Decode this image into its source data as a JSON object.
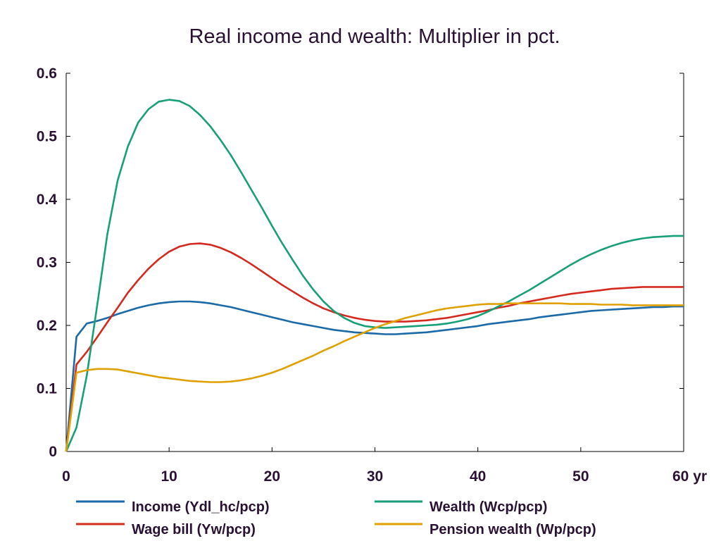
{
  "chart_data": {
    "type": "line",
    "title": "Real income and wealth: Multiplier in pct.",
    "xlabel": "",
    "ylabel": "",
    "x_unit_label": "yr",
    "xlim": [
      0,
      60
    ],
    "ylim": [
      0,
      0.6
    ],
    "x_ticks": [
      0,
      10,
      20,
      30,
      40,
      50,
      60
    ],
    "x_tick_labels": [
      "0",
      "10",
      "20",
      "30",
      "40",
      "50",
      "60 yr"
    ],
    "y_ticks": [
      0,
      0.1,
      0.2,
      0.3,
      0.4,
      0.5,
      0.6
    ],
    "y_tick_labels": [
      "0",
      "0.1",
      "0.2",
      "0.3",
      "0.4",
      "0.5",
      "0.6"
    ],
    "grid": false,
    "legend_position": "bottom",
    "x": [
      0,
      1,
      2,
      3,
      4,
      5,
      6,
      7,
      8,
      9,
      10,
      11,
      12,
      13,
      14,
      15,
      16,
      17,
      18,
      19,
      20,
      21,
      22,
      23,
      24,
      25,
      26,
      27,
      28,
      29,
      30,
      31,
      32,
      33,
      34,
      35,
      36,
      37,
      38,
      39,
      40,
      41,
      42,
      43,
      44,
      45,
      46,
      47,
      48,
      49,
      50,
      51,
      52,
      53,
      54,
      55,
      56,
      57,
      58,
      59,
      60
    ],
    "series": [
      {
        "name": "Income (Ydl_hc/pcp)",
        "color": "#1a6aa8",
        "values": [
          0.0,
          0.182,
          0.203,
          0.207,
          0.212,
          0.218,
          0.223,
          0.228,
          0.232,
          0.235,
          0.237,
          0.238,
          0.238,
          0.237,
          0.235,
          0.232,
          0.229,
          0.225,
          0.221,
          0.217,
          0.213,
          0.209,
          0.205,
          0.202,
          0.199,
          0.196,
          0.193,
          0.191,
          0.189,
          0.188,
          0.187,
          0.186,
          0.186,
          0.187,
          0.188,
          0.189,
          0.191,
          0.193,
          0.195,
          0.197,
          0.199,
          0.202,
          0.204,
          0.206,
          0.208,
          0.21,
          0.213,
          0.215,
          0.217,
          0.219,
          0.221,
          0.223,
          0.224,
          0.225,
          0.226,
          0.227,
          0.228,
          0.229,
          0.229,
          0.23,
          0.23
        ]
      },
      {
        "name": "Wage bill (Yw/pcp)",
        "color": "#d42a1e",
        "values": [
          0.0,
          0.138,
          0.158,
          0.181,
          0.205,
          0.228,
          0.252,
          0.272,
          0.29,
          0.305,
          0.317,
          0.325,
          0.329,
          0.33,
          0.328,
          0.323,
          0.316,
          0.307,
          0.297,
          0.286,
          0.275,
          0.264,
          0.254,
          0.244,
          0.235,
          0.227,
          0.221,
          0.216,
          0.212,
          0.209,
          0.207,
          0.206,
          0.206,
          0.206,
          0.207,
          0.208,
          0.21,
          0.212,
          0.215,
          0.218,
          0.221,
          0.224,
          0.228,
          0.231,
          0.235,
          0.238,
          0.241,
          0.244,
          0.247,
          0.25,
          0.252,
          0.254,
          0.256,
          0.258,
          0.259,
          0.26,
          0.261,
          0.261,
          0.261,
          0.261,
          0.261
        ]
      },
      {
        "name": "Wealth (Wcp/pcp)",
        "color": "#17a078",
        "values": [
          0.0,
          0.038,
          0.12,
          0.23,
          0.345,
          0.43,
          0.484,
          0.522,
          0.543,
          0.555,
          0.558,
          0.556,
          0.548,
          0.534,
          0.516,
          0.494,
          0.47,
          0.443,
          0.415,
          0.387,
          0.358,
          0.33,
          0.304,
          0.279,
          0.257,
          0.238,
          0.223,
          0.212,
          0.204,
          0.199,
          0.197,
          0.196,
          0.197,
          0.198,
          0.199,
          0.2,
          0.201,
          0.203,
          0.206,
          0.21,
          0.215,
          0.222,
          0.23,
          0.238,
          0.247,
          0.256,
          0.266,
          0.276,
          0.286,
          0.296,
          0.305,
          0.313,
          0.32,
          0.326,
          0.331,
          0.335,
          0.338,
          0.34,
          0.341,
          0.342,
          0.342
        ]
      },
      {
        "name": "Pension wealth (Wp/pcp)",
        "color": "#e0a000",
        "values": [
          0.0,
          0.125,
          0.129,
          0.131,
          0.131,
          0.13,
          0.127,
          0.124,
          0.121,
          0.118,
          0.116,
          0.114,
          0.112,
          0.111,
          0.11,
          0.11,
          0.111,
          0.113,
          0.116,
          0.12,
          0.125,
          0.131,
          0.138,
          0.145,
          0.152,
          0.16,
          0.167,
          0.175,
          0.182,
          0.189,
          0.196,
          0.202,
          0.207,
          0.212,
          0.216,
          0.22,
          0.224,
          0.227,
          0.229,
          0.231,
          0.233,
          0.234,
          0.234,
          0.235,
          0.235,
          0.235,
          0.235,
          0.235,
          0.235,
          0.234,
          0.234,
          0.234,
          0.233,
          0.233,
          0.233,
          0.232,
          0.232,
          0.232,
          0.232,
          0.232,
          0.232
        ]
      }
    ]
  }
}
